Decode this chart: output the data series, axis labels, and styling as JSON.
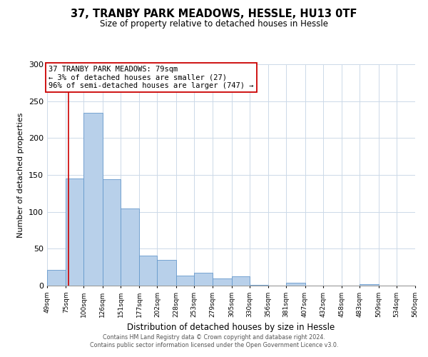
{
  "title": "37, TRANBY PARK MEADOWS, HESSLE, HU13 0TF",
  "subtitle": "Size of property relative to detached houses in Hessle",
  "xlabel": "Distribution of detached houses by size in Hessle",
  "ylabel": "Number of detached properties",
  "bar_values": [
    21,
    145,
    234,
    144,
    105,
    41,
    35,
    14,
    17,
    10,
    13,
    1,
    0,
    4,
    0,
    0,
    0,
    2,
    0,
    0
  ],
  "bin_labels": [
    "49sqm",
    "75sqm",
    "100sqm",
    "126sqm",
    "151sqm",
    "177sqm",
    "202sqm",
    "228sqm",
    "253sqm",
    "279sqm",
    "305sqm",
    "330sqm",
    "356sqm",
    "381sqm",
    "407sqm",
    "432sqm",
    "458sqm",
    "483sqm",
    "509sqm",
    "534sqm",
    "560sqm"
  ],
  "bar_color": "#b8d0ea",
  "bar_edge_color": "#6699cc",
  "ylim": [
    0,
    300
  ],
  "yticks": [
    0,
    50,
    100,
    150,
    200,
    250,
    300
  ],
  "annotation_box_text": "37 TRANBY PARK MEADOWS: 79sqm\n← 3% of detached houses are smaller (27)\n96% of semi-detached houses are larger (747) →",
  "ref_line_color": "#cc0000",
  "footer_line1": "Contains HM Land Registry data © Crown copyright and database right 2024.",
  "footer_line2": "Contains public sector information licensed under the Open Government Licence v3.0.",
  "bin_edges": [
    49,
    75,
    100,
    126,
    151,
    177,
    202,
    228,
    253,
    279,
    305,
    330,
    356,
    381,
    407,
    432,
    458,
    483,
    509,
    534,
    560
  ]
}
